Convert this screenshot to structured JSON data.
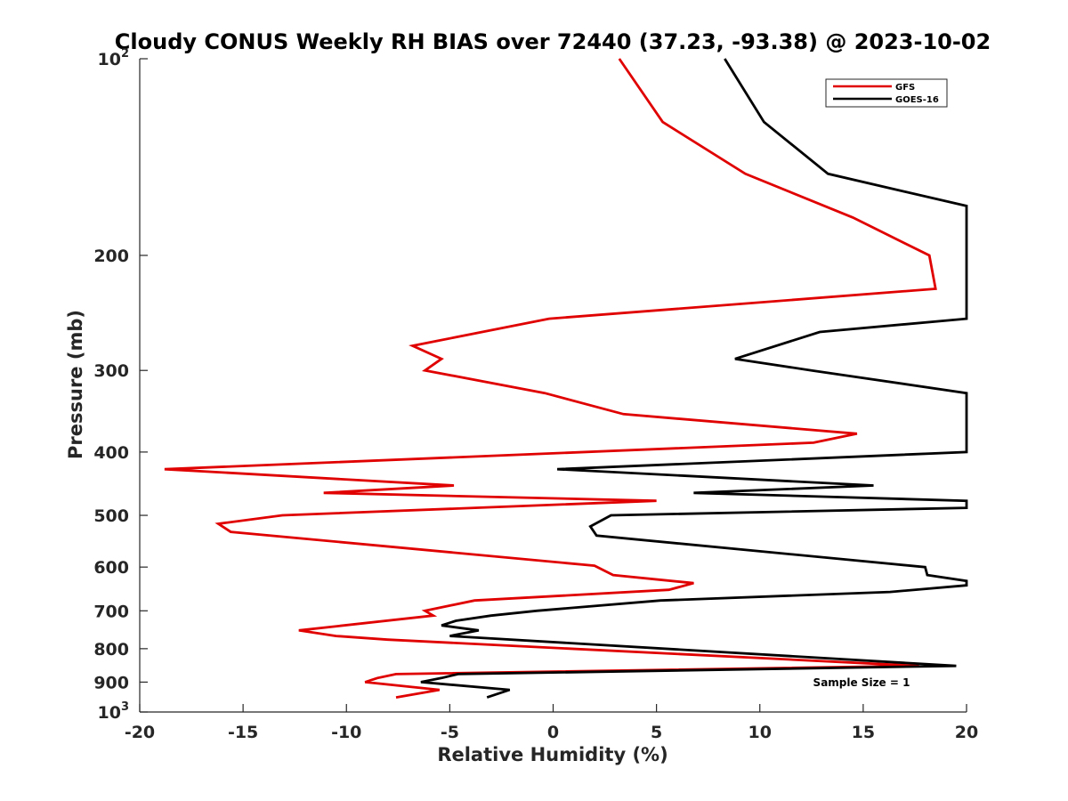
{
  "chart_data": {
    "type": "line",
    "title": "Cloudy CONUS Weekly RH BIAS over 72440 (37.23, -93.38) @ 2023-10-02",
    "xlabel": "Relative Humidity (%)",
    "ylabel": "Pressure (mb)",
    "xlim": [
      -20,
      20
    ],
    "ylim": [
      100,
      1000
    ],
    "y_scale": "log",
    "y_reversed": true,
    "xticks": [
      -20,
      -15,
      -10,
      -5,
      0,
      5,
      10,
      15,
      20
    ],
    "xtick_labels": [
      "-20",
      "-15",
      "-10",
      "-5",
      "0",
      "5",
      "10",
      "15",
      "20"
    ],
    "yticks": [
      {
        "value": 100,
        "label": "10",
        "sup": "2"
      },
      {
        "value": 200,
        "label": "200",
        "sup": ""
      },
      {
        "value": 300,
        "label": "300",
        "sup": ""
      },
      {
        "value": 400,
        "label": "400",
        "sup": ""
      },
      {
        "value": 500,
        "label": "500",
        "sup": ""
      },
      {
        "value": 600,
        "label": "600",
        "sup": ""
      },
      {
        "value": 700,
        "label": "700",
        "sup": ""
      },
      {
        "value": 800,
        "label": "800",
        "sup": ""
      },
      {
        "value": 900,
        "label": "900",
        "sup": ""
      },
      {
        "value": 1000,
        "label": "10",
        "sup": "3"
      }
    ],
    "grid": false,
    "legend_position": "top-right",
    "annotation": "Sample Size = 1",
    "series": [
      {
        "name": "GFS",
        "color": "#e00000",
        "points": [
          [
            3.2,
            100
          ],
          [
            5.3,
            125
          ],
          [
            9.3,
            150
          ],
          [
            14.5,
            175
          ],
          [
            18.2,
            200
          ],
          [
            18.5,
            225
          ],
          [
            -0.2,
            250
          ],
          [
            -6.8,
            275
          ],
          [
            -5.4,
            288
          ],
          [
            -6.2,
            300
          ],
          [
            -0.4,
            325
          ],
          [
            3.4,
            350
          ],
          [
            14.7,
            375
          ],
          [
            12.6,
            387
          ],
          [
            -18.8,
            425
          ],
          [
            -4.8,
            450
          ],
          [
            -11.1,
            462
          ],
          [
            5.0,
            475
          ],
          [
            -13.1,
            500
          ],
          [
            -16.2,
            515
          ],
          [
            -15.6,
            530
          ],
          [
            2.0,
            597
          ],
          [
            2.9,
            617
          ],
          [
            6.8,
            635
          ],
          [
            5.6,
            650
          ],
          [
            -3.8,
            675
          ],
          [
            -6.2,
            700
          ],
          [
            -5.8,
            712
          ],
          [
            -12.3,
            750
          ],
          [
            -10.5,
            765
          ],
          [
            -8.0,
            775
          ],
          [
            17.7,
            850
          ],
          [
            -7.6,
            875
          ],
          [
            -8.5,
            887
          ],
          [
            -9.1,
            900
          ],
          [
            -5.5,
            925
          ],
          [
            -7.6,
            950
          ]
        ]
      },
      {
        "name": "GOES-16",
        "color": "#000000",
        "points": [
          [
            8.3,
            100
          ],
          [
            10.2,
            125
          ],
          [
            13.3,
            150
          ],
          [
            20.0,
            168
          ],
          [
            20.0,
            250
          ],
          [
            12.9,
            262
          ],
          [
            8.8,
            288
          ],
          [
            12.5,
            300
          ],
          [
            20.0,
            325
          ],
          [
            20.0,
            400
          ],
          [
            0.2,
            425
          ],
          [
            15.5,
            450
          ],
          [
            6.8,
            462
          ],
          [
            20.0,
            475
          ],
          [
            20.0,
            487
          ],
          [
            2.8,
            500
          ],
          [
            1.8,
            520
          ],
          [
            2.1,
            537
          ],
          [
            18.0,
            600
          ],
          [
            18.1,
            617
          ],
          [
            20.0,
            630
          ],
          [
            20.0,
            640
          ],
          [
            16.3,
            655
          ],
          [
            5.2,
            675
          ],
          [
            -0.8,
            700
          ],
          [
            -3.0,
            712
          ],
          [
            -4.7,
            725
          ],
          [
            -5.4,
            737
          ],
          [
            -3.6,
            750
          ],
          [
            -5.0,
            765
          ],
          [
            19.5,
            850
          ],
          [
            -4.6,
            875
          ],
          [
            -5.4,
            887
          ],
          [
            -6.4,
            900
          ],
          [
            -2.1,
            925
          ],
          [
            -3.2,
            950
          ]
        ]
      }
    ]
  }
}
